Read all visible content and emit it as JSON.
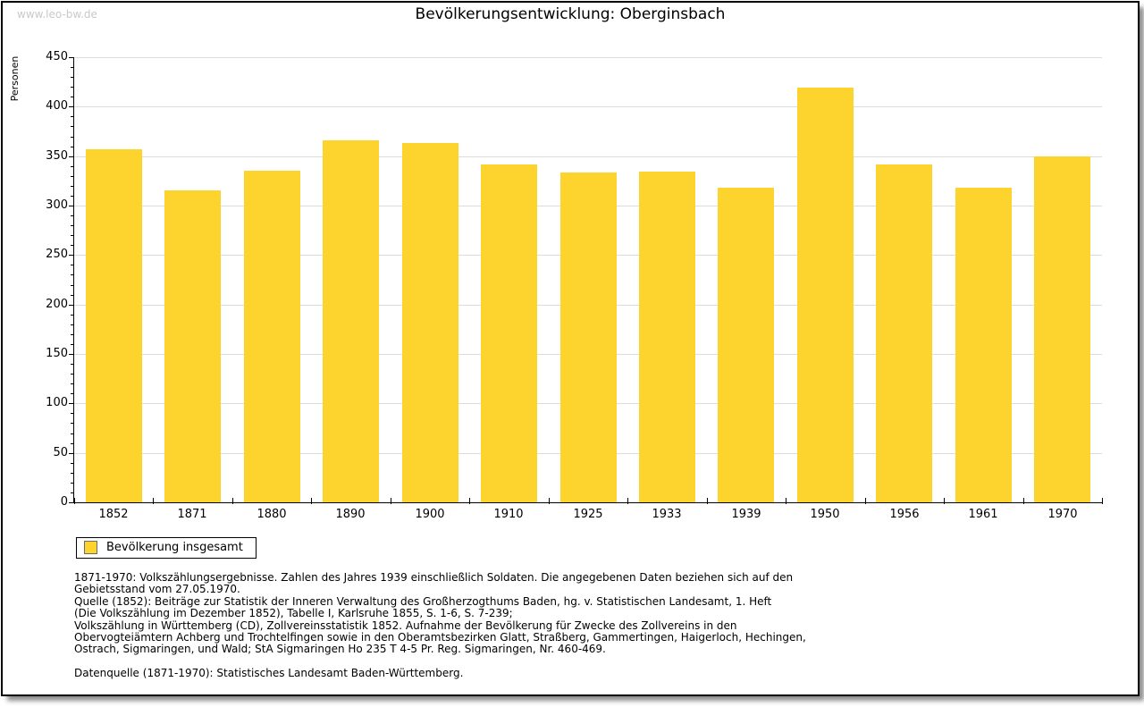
{
  "watermark": "www.leo-bw.de",
  "title": "Bevölkerungsentwicklung: Oberginsbach",
  "legend": {
    "label": "Bevölkerung insgesamt"
  },
  "notes": {
    "lines": [
      "1871-1970: Volkszählungsergebnisse. Zahlen des Jahres 1939 einschließlich Soldaten. Die angegebenen Daten beziehen sich auf den",
      "Gebietsstand vom 27.05.1970.",
      "Quelle (1852): Beiträge zur Statistik der Inneren Verwaltung des Großherzogthums Baden, hg. v. Statistischen Landesamt, 1. Heft",
      "(Die Volkszählung im Dezember 1852), Tabelle I, Karlsruhe 1855, S. 1-6, S. 7-239;",
      "Volkszählung in Württemberg (CD), Zollvereinsstatistik 1852. Aufnahme der Bevölkerung für Zwecke des Zollvereins in den",
      "Obervogteiämtern Achberg und Trochtelfingen sowie in den Oberamtsbezirken Glatt, Straßberg, Gammertingen, Haigerloch, Hechingen,",
      "Ostrach, Sigmaringen, und Wald; StA Sigmaringen Ho 235 T 4-5 Pr. Reg. Sigmaringen, Nr. 460-469."
    ],
    "datasource": "Datenquelle (1871-1970): Statistisches Landesamt Baden-Württemberg."
  },
  "chart_data": {
    "type": "bar",
    "title": "Bevölkerungsentwicklung: Oberginsbach",
    "xlabel": "",
    "ylabel": "Personen",
    "categories": [
      "1852",
      "1871",
      "1880",
      "1890",
      "1900",
      "1910",
      "1925",
      "1933",
      "1939",
      "1950",
      "1956",
      "1961",
      "1970"
    ],
    "values": [
      357,
      315,
      335,
      366,
      363,
      342,
      333,
      334,
      318,
      419,
      342,
      318,
      350
    ],
    "series_name": "Bevölkerung insgesamt",
    "ylim": [
      0,
      450
    ],
    "ytick_step": 50,
    "minor_tick_step": 10,
    "grid": true,
    "legend_position": "bottom-left",
    "bar_color": "#fcd42d",
    "grid_color": "#dcdcdc"
  }
}
